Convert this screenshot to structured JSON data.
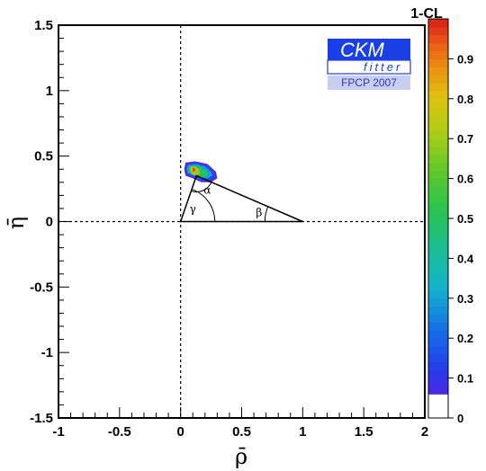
{
  "chart_data": {
    "type": "heatmap",
    "xlabel": "ρ̄",
    "ylabel": "η̄",
    "xlim": [
      -1,
      2
    ],
    "ylim": [
      -1.5,
      1.5
    ],
    "x_ticks": [
      "-1",
      "-0.5",
      "0",
      "0.5",
      "1",
      "1.5",
      "2"
    ],
    "y_ticks": [
      "-1.5",
      "-1",
      "-0.5",
      "0",
      "0.5",
      "1",
      "1.5"
    ],
    "x_tick_values": [
      -1,
      -0.5,
      0,
      0.5,
      1,
      1.5,
      2
    ],
    "y_tick_values": [
      -1.5,
      -1,
      -0.5,
      0,
      0.5,
      1,
      1.5
    ],
    "colorbar": {
      "title": "1-CL",
      "range": [
        0,
        1
      ],
      "tick_values": [
        0,
        0.1,
        0.2,
        0.3,
        0.4,
        0.5,
        0.6,
        0.7,
        0.8,
        0.9
      ],
      "tick_labels": [
        "0",
        "0.1",
        "0.2",
        "0.3",
        "0.4",
        "0.5",
        "0.6",
        "0.7",
        "0.8",
        "0.9"
      ]
    },
    "triangle": {
      "vertices": [
        [
          0,
          0
        ],
        [
          1,
          0
        ],
        [
          0.13,
          0.35
        ]
      ],
      "angle_labels": {
        "alpha": "α",
        "beta": "β",
        "gamma": "γ"
      }
    },
    "region": {
      "center": [
        0.15,
        0.37
      ],
      "contours": [
        {
          "level": 0.05,
          "points": [
            [
              0.04,
              0.45
            ],
            [
              0.12,
              0.46
            ],
            [
              0.22,
              0.44
            ],
            [
              0.29,
              0.38
            ],
            [
              0.3,
              0.33
            ],
            [
              0.25,
              0.3
            ],
            [
              0.17,
              0.3
            ],
            [
              0.1,
              0.33
            ],
            [
              0.04,
              0.35
            ],
            [
              0.03,
              0.4
            ]
          ]
        },
        {
          "level": 0.15,
          "points": [
            [
              0.05,
              0.44
            ],
            [
              0.12,
              0.45
            ],
            [
              0.21,
              0.43
            ],
            [
              0.27,
              0.38
            ],
            [
              0.28,
              0.34
            ],
            [
              0.24,
              0.31
            ],
            [
              0.17,
              0.31
            ],
            [
              0.11,
              0.34
            ],
            [
              0.05,
              0.36
            ],
            [
              0.04,
              0.4
            ]
          ]
        },
        {
          "level": 0.3,
          "points": [
            [
              0.06,
              0.43
            ],
            [
              0.12,
              0.44
            ],
            [
              0.2,
              0.42
            ],
            [
              0.25,
              0.38
            ],
            [
              0.26,
              0.35
            ],
            [
              0.22,
              0.33
            ],
            [
              0.16,
              0.33
            ],
            [
              0.11,
              0.35
            ],
            [
              0.06,
              0.37
            ],
            [
              0.05,
              0.4
            ]
          ]
        },
        {
          "level": 0.5,
          "points": [
            [
              0.07,
              0.42
            ],
            [
              0.12,
              0.43
            ],
            [
              0.18,
              0.41
            ],
            [
              0.22,
              0.38
            ],
            [
              0.22,
              0.35
            ],
            [
              0.18,
              0.34
            ],
            [
              0.14,
              0.34
            ],
            [
              0.1,
              0.36
            ],
            [
              0.07,
              0.38
            ]
          ]
        },
        {
          "level": 0.7,
          "points": [
            [
              0.08,
              0.42
            ],
            [
              0.12,
              0.42
            ],
            [
              0.15,
              0.4
            ],
            [
              0.16,
              0.37
            ],
            [
              0.13,
              0.35
            ],
            [
              0.1,
              0.36
            ],
            [
              0.08,
              0.38
            ]
          ]
        },
        {
          "level": 0.85,
          "points": [
            [
              0.09,
              0.41
            ],
            [
              0.12,
              0.41
            ],
            [
              0.13,
              0.39
            ],
            [
              0.12,
              0.37
            ],
            [
              0.1,
              0.37
            ],
            [
              0.09,
              0.39
            ]
          ]
        },
        {
          "level": 0.97,
          "points": [
            [
              0.1,
              0.41
            ],
            [
              0.115,
              0.41
            ],
            [
              0.12,
              0.395
            ],
            [
              0.11,
              0.38
            ],
            [
              0.1,
              0.385
            ]
          ]
        }
      ]
    }
  },
  "logo": {
    "main_text": "CKM",
    "sub_text": "fitter",
    "conference": "FPCP 2007",
    "main_color": "#1a3fe6",
    "conf_bg": "#c9cdf2"
  }
}
